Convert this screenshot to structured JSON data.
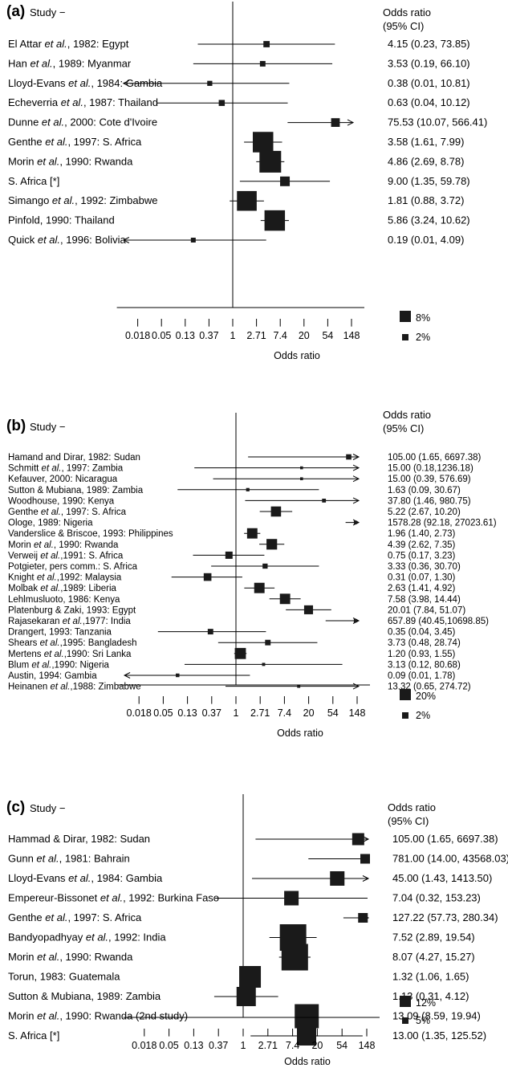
{
  "chart_data": [
    {
      "type": "forest",
      "panel": "(a)",
      "study_header": "Study",
      "study_header_dash": "−",
      "or_header": [
        "Odds ratio",
        "(95% CI)"
      ],
      "xlabel": "Odds ratio",
      "scale": "log",
      "ticks": [
        "0.018",
        "0.05",
        "0.13",
        "0.37",
        "1",
        "2.71",
        "7.4",
        "20",
        "54",
        "148"
      ],
      "legend": [
        "8%",
        "2%"
      ],
      "studies": [
        {
          "label": [
            "El Attar ",
            "et al.",
            ", 1982: Egypt"
          ],
          "or": 4.15,
          "lo": 0.23,
          "hi": 73.85,
          "text": "4.15 (0.23, 73.85)",
          "w": 2.6
        },
        {
          "label": [
            "Han ",
            "et al.",
            ", 1989: Myanmar"
          ],
          "or": 3.53,
          "lo": 0.19,
          "hi": 66.1,
          "text": "3.53 (0.19, 66.10)",
          "w": 2.3
        },
        {
          "label": [
            "Lloyd-Evans ",
            "et al.",
            ", 1984: Gambia"
          ],
          "or": 0.38,
          "lo": 0.01,
          "hi": 10.81,
          "text": "0.38 (0.01, 10.81)",
          "w": 2.1
        },
        {
          "label": [
            "Echeverria ",
            "et al.",
            ", 1987: Thailand"
          ],
          "or": 0.63,
          "lo": 0.04,
          "hi": 10.12,
          "text": "0.63 (0.04, 10.12)",
          "w": 2.5
        },
        {
          "label": [
            "Dunne ",
            "et al.",
            ", 2000: Cote d'Ivoire"
          ],
          "or": 75.53,
          "lo": 10.07,
          "hi": 566.41,
          "text": "75.53 (10.07, 566.41)",
          "w": 3.6
        },
        {
          "label": [
            "Genthe ",
            "et al.",
            ", 1997: S. Africa"
          ],
          "or": 3.58,
          "lo": 1.61,
          "hi": 7.99,
          "text": "3.58 (1.61, 7.99)",
          "w": 8.5
        },
        {
          "label": [
            "Morin ",
            "et al.",
            ", 1990: Rwanda"
          ],
          "or": 4.86,
          "lo": 2.69,
          "hi": 8.78,
          "text": "4.86 (2.69, 8.78)",
          "w": 9.0
        },
        {
          "label": [
            "S. Africa [*]"
          ],
          "or": 9.0,
          "lo": 1.35,
          "hi": 59.78,
          "text": "9.00 (1.35, 59.78)",
          "w": 4.0
        },
        {
          "label": [
            "Simango ",
            "et al.",
            ", 1992: Zimbabwe"
          ],
          "or": 1.81,
          "lo": 0.88,
          "hi": 3.72,
          "text": "1.81 (0.88, 3.72)",
          "w": 8.2
        },
        {
          "label": [
            "Pinfold, 1990: Thailand"
          ],
          "or": 5.86,
          "lo": 3.24,
          "hi": 10.62,
          "text": "5.86 (3.24, 10.62)",
          "w": 8.5
        },
        {
          "label": [
            "Quick ",
            "et al.",
            ", 1996: Bolivia"
          ],
          "or": 0.19,
          "lo": 0.01,
          "hi": 4.09,
          "text": "0.19 (0.01, 4.09)",
          "w": 2.0
        }
      ]
    },
    {
      "type": "forest",
      "panel": "(b)",
      "study_header": "Study",
      "study_header_dash": "−",
      "or_header": [
        "Odds ratio",
        "(95% CI)"
      ],
      "xlabel": "Odds ratio",
      "scale": "log",
      "ticks": [
        "0.018",
        "0.05",
        "0.13",
        "0.37",
        "1",
        "2.71",
        "7.4",
        "20",
        "54",
        "148"
      ],
      "legend": [
        "20%",
        "2%"
      ],
      "studies": [
        {
          "label": [
            "Hamand and Dirar, 1982: Sudan"
          ],
          "or": 105.0,
          "lo": 1.65,
          "hi": 6697.38,
          "text": "105.00 (1.65, 6697.38)",
          "w": 2.2
        },
        {
          "label": [
            "Schmitt ",
            "et al.",
            ", 1997: Zambia"
          ],
          "or": 15.0,
          "lo": 0.18,
          "hi": 1236.18,
          "text": "15.00 (0.18,1236.18)",
          "w": 1.2
        },
        {
          "label": [
            "Kefauver, 2000: Nicaragua"
          ],
          "or": 15.0,
          "lo": 0.39,
          "hi": 576.69,
          "text": "15.00 (0.39, 576.69)",
          "w": 1.2
        },
        {
          "label": [
            "Sutton & Mubiana, 1989: Zambia"
          ],
          "or": 1.63,
          "lo": 0.09,
          "hi": 30.67,
          "text": "1.63 (0.09, 30.67)",
          "w": 1.4
        },
        {
          "label": [
            "Woodhouse, 1990: Kenya"
          ],
          "or": 37.8,
          "lo": 1.46,
          "hi": 980.75,
          "text": "37.80 (1.46, 980.75)",
          "w": 1.6
        },
        {
          "label": [
            "Genthe ",
            "et al.",
            ", 1997: S. Africa"
          ],
          "or": 5.22,
          "lo": 2.67,
          "hi": 10.2,
          "text": "5.22 (2.67, 10.20)",
          "w": 4.2
        },
        {
          "label": [
            "Ologe, 1989: Nigeria"
          ],
          "or": 1578.28,
          "lo": 92.18,
          "hi": 27023.61,
          "text": "1578.28 (92.18, 27023.61)",
          "w": 1.4
        },
        {
          "label": [
            "Vanderslice & Briscoe, 1993: Philippines"
          ],
          "or": 1.96,
          "lo": 1.4,
          "hi": 2.73,
          "text": "1.96 (1.40, 2.73)",
          "w": 4.3
        },
        {
          "label": [
            "Morin ",
            "et al.",
            ", 1990: Rwanda"
          ],
          "or": 4.39,
          "lo": 2.62,
          "hi": 7.35,
          "text": "4.39 (2.62, 7.35)",
          "w": 4.4
        },
        {
          "label": [
            "Verweij ",
            "et al.",
            ",1991: S. Africa"
          ],
          "or": 0.75,
          "lo": 0.17,
          "hi": 3.23,
          "text": "0.75 (0.17, 3.23)",
          "w": 3.0
        },
        {
          "label": [
            "Potgieter, pers comm.: S. Africa"
          ],
          "or": 3.33,
          "lo": 0.36,
          "hi": 30.7,
          "text": "3.33 (0.36, 30.70)",
          "w": 2.1
        },
        {
          "label": [
            "Knight ",
            "et al.",
            ",1992: Malaysia"
          ],
          "or": 0.31,
          "lo": 0.07,
          "hi": 1.3,
          "text": "0.31 (0.07, 1.30)",
          "w": 3.2
        },
        {
          "label": [
            "Molbak ",
            "et al.",
            ",1989: Liberia"
          ],
          "or": 2.63,
          "lo": 1.41,
          "hi": 4.92,
          "text": "2.63 (1.41, 4.92)",
          "w": 4.3
        },
        {
          "label": [
            "Lehlmusluoto, 1986: Kenya"
          ],
          "or": 7.58,
          "lo": 3.98,
          "hi": 14.44,
          "text": "7.58 (3.98, 14.44)",
          "w": 4.3
        },
        {
          "label": [
            "Platenburg & Zaki, 1993: Egypt"
          ],
          "or": 20.01,
          "lo": 7.84,
          "hi": 51.07,
          "text": "20.01 (7.84, 51.07)",
          "w": 3.7
        },
        {
          "label": [
            "Rajasekaran ",
            "et al.",
            ",1977: India"
          ],
          "or": 657.89,
          "lo": 40.45,
          "hi": 10698.85,
          "text": "657.89 (40.45,10698.85)",
          "w": 1.4
        },
        {
          "label": [
            "Drangert, 1993: Tanzania"
          ],
          "or": 0.35,
          "lo": 0.04,
          "hi": 3.45,
          "text": "0.35 (0.04, 3.45)",
          "w": 2.3
        },
        {
          "label": [
            "Shears ",
            "et al.",
            ",1995: Bangladesh"
          ],
          "or": 3.73,
          "lo": 0.48,
          "hi": 28.74,
          "text": "3.73 (0.48, 28.74)",
          "w": 2.3
        },
        {
          "label": [
            "Mertens ",
            "et al.",
            ",1990: Sri Lanka"
          ],
          "or": 1.2,
          "lo": 0.93,
          "hi": 1.55,
          "text": "1.20 (0.93, 1.55)",
          "w": 4.6
        },
        {
          "label": [
            "Blum ",
            "et al.",
            ",1990: Nigeria"
          ],
          "or": 3.13,
          "lo": 0.12,
          "hi": 80.68,
          "text": "3.13 (0.12, 80.68)",
          "w": 1.3
        },
        {
          "label": [
            "Austin, 1994: Gambia"
          ],
          "or": 0.09,
          "lo": 0.01,
          "hi": 1.78,
          "text": "0.09 (0.01, 1.78)",
          "w": 1.5
        },
        {
          "label": [
            "Heinanen ",
            "et al.",
            ",1988: Zimbabwe"
          ],
          "or": 13.32,
          "lo": 0.65,
          "hi": 274.72,
          "text": "13.32 (0.65, 274.72)",
          "w": 1.3
        }
      ]
    },
    {
      "type": "forest",
      "panel": "(c)",
      "study_header": "Study",
      "study_header_dash": "−",
      "or_header": [
        "Odds ratio",
        "(95% CI)"
      ],
      "xlabel": "Odds ratio",
      "scale": "log",
      "ticks": [
        "0.018",
        "0.05",
        "0.13",
        "0.37",
        "1",
        "2.71",
        "7.4",
        "20",
        "54",
        "148"
      ],
      "legend": [
        "12%",
        "5%"
      ],
      "studies": [
        {
          "label": [
            "Hammad & Dirar, 1982: Sudan"
          ],
          "or": 105.0,
          "lo": 1.65,
          "hi": 6697.38,
          "text": "105.00 (1.65, 6697.38)",
          "w": 5.0
        },
        {
          "label": [
            "Gunn ",
            "et al.",
            ", 1981: Bahrain"
          ],
          "or": 781.0,
          "lo": 14.0,
          "hi": 43568.03,
          "text": "781.00 (14.00, 43568.03)",
          "w": 4.0
        },
        {
          "label": [
            "Lloyd-Evans ",
            "et al.",
            ", 1984: Gambia"
          ],
          "or": 45.0,
          "lo": 1.43,
          "hi": 1413.5,
          "text": "45.00 (1.43, 1413.50)",
          "w": 6.0
        },
        {
          "label": [
            "Empereur-Bissonet ",
            "et al.",
            ", 1992: Burkina Faso"
          ],
          "or": 7.04,
          "lo": 0.32,
          "hi": 153.23,
          "text": "7.04 (0.32, 153.23)",
          "w": 6.0
        },
        {
          "label": [
            "Genthe ",
            "et al.",
            ", 1997: S. Africa"
          ],
          "or": 127.22,
          "lo": 57.73,
          "hi": 280.34,
          "text": "127.22 (57.73, 280.34)",
          "w": 4.0
        },
        {
          "label": [
            "Bandyopadhyay ",
            "et al.",
            ", 1992: India"
          ],
          "or": 7.52,
          "lo": 2.89,
          "hi": 19.54,
          "text": "7.52 (2.89, 19.54)",
          "w": 11.0
        },
        {
          "label": [
            "Morin ",
            "et al.",
            ", 1990: Rwanda"
          ],
          "or": 8.07,
          "lo": 4.27,
          "hi": 15.27,
          "text": "8.07 (4.27, 15.27)",
          "w": 11.0
        },
        {
          "label": [
            "Torun, 1983: Guatemala"
          ],
          "or": 1.32,
          "lo": 1.06,
          "hi": 1.65,
          "text": "1.32 (1.06, 1.65)",
          "w": 9.0
        },
        {
          "label": [
            "Sutton & Mubiana, 1989: Zambia"
          ],
          "or": 1.13,
          "lo": 0.31,
          "hi": 4.12,
          "text": "1.13 (0.31, 4.12)",
          "w": 8.0
        },
        {
          "label": [
            "Morin ",
            "et al.",
            ", 1990: Rwanda (2nd study)"
          ],
          "or": 13.09,
          "lo": 8.59,
          "hi": 19.94,
          "text": "13.09 (8.59, 19.94)",
          "w": 10.0
        },
        {
          "label": [
            "S. Africa [*]"
          ],
          "or": 13.0,
          "lo": 1.35,
          "hi": 125.52,
          "text": "13.00 (1.35, 125.52)",
          "w": 8.0
        }
      ]
    }
  ]
}
